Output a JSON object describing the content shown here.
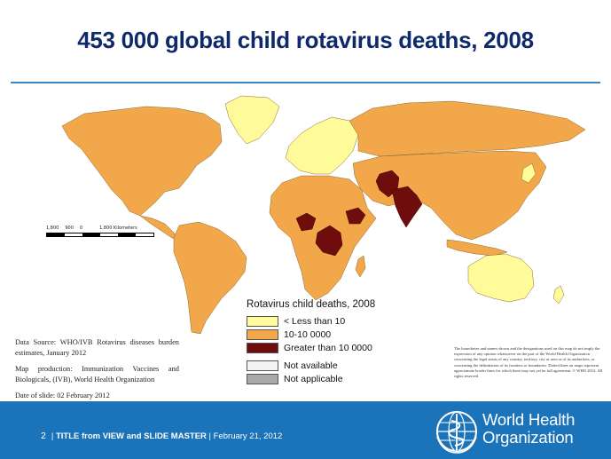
{
  "title": "453 000 global child rotavirus deaths, 2008",
  "colors": {
    "title": "#0f2a6b",
    "rule": "#3d87c4",
    "ocean": "#ffffff",
    "low": "#fffb9a",
    "mid": "#f2a84a",
    "high": "#6f0d0d",
    "not_available": "#f4f4f4",
    "not_applicable": "#a9a9a9",
    "footer": "#1b73b9"
  },
  "scalebar": {
    "labels": [
      "1,800",
      "900",
      "0",
      "1,800 Kilometers"
    ]
  },
  "legend": {
    "title": "Rotavirus child deaths, 2008",
    "items": [
      {
        "label": "< Less than 10",
        "color": "#fffb9a"
      },
      {
        "label": "10-10 0000",
        "color": "#f2a84a"
      },
      {
        "label": "Greater than 10 0000",
        "color": "#6f0d0d"
      },
      {
        "label": "Not available",
        "color": "#f4f4f4"
      },
      {
        "label": "Not applicable",
        "color": "#a9a9a9"
      }
    ]
  },
  "source": {
    "data_source": "Data Source: WHO/IVB Rotavirus diseases burden estimates, January 2012",
    "map_production": "Map production: Immunization Vaccines and Biologicals, (IVB), World Health Organization",
    "date": "Date of slide: 02 February 2012"
  },
  "disclaimer": "The boundaries and names shown and the designations used on this map do not imply the expression of any opinion whatsoever on the part of the World Health Organization concerning the legal status of any country, territory, city or area or of its authorities, or concerning the delimitation of its frontiers or boundaries. Dotted lines on maps represent approximate border lines for which there may not yet be full agreement. © WHO 2012. All rights reserved",
  "footer": {
    "page": "2",
    "title_text": "TITLE from VIEW and SLIDE MASTER",
    "date": "February 21, 2012",
    "org_line1": "World Health",
    "org_line2": "Organization"
  },
  "map_regions": [
    {
      "name": "north-america",
      "category": "10-10 0000"
    },
    {
      "name": "greenland",
      "category": "< Less than 10"
    },
    {
      "name": "south-america",
      "category": "10-10 0000"
    },
    {
      "name": "europe",
      "category": "< Less than 10"
    },
    {
      "name": "africa",
      "category": "10-10 0000"
    },
    {
      "name": "russia",
      "category": "10-10 0000"
    },
    {
      "name": "asia",
      "category": "10-10 0000"
    },
    {
      "name": "australia",
      "category": "< Less than 10"
    },
    {
      "name": "india",
      "category": "Greater than 10 0000"
    },
    {
      "name": "pakistan",
      "category": "Greater than 10 0000"
    },
    {
      "name": "afghanistan",
      "category": "Greater than 10 0000"
    },
    {
      "name": "nigeria",
      "category": "Greater than 10 0000"
    },
    {
      "name": "dr-congo",
      "category": "Greater than 10 0000"
    },
    {
      "name": "ethiopia",
      "category": "Greater than 10 0000"
    }
  ]
}
